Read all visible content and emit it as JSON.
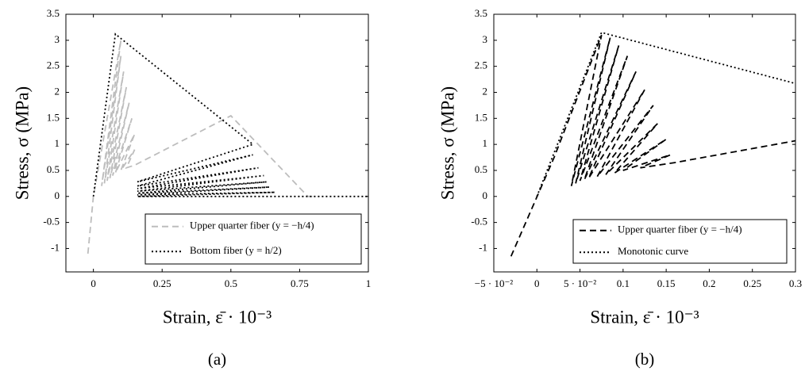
{
  "chart_data": [
    {
      "type": "line",
      "caption": "(a)",
      "x_label": "Strain, ε̄ · 10⁻³",
      "y_label": "Stress, σ (MPa)",
      "xlim": [
        -0.1,
        1
      ],
      "ylim": [
        -1.45,
        3.5
      ],
      "xticks": [
        0,
        0.25,
        0.5,
        0.75,
        1
      ],
      "yticks": [
        -1,
        -0.5,
        0,
        0.5,
        1,
        1.5,
        2,
        2.5,
        3,
        3.5
      ],
      "grid": false,
      "legend": "lower right",
      "series": [
        {
          "name": "Upper quarter fiber (y = −h/4)",
          "color": "#bdbdbd",
          "dash": "dashed",
          "x": [
            -0.02,
            0,
            0.1,
            0.03,
            0.1,
            0.04,
            0.11,
            0.05,
            0.12,
            0.06,
            0.13,
            0.07,
            0.14,
            0.08,
            0.15,
            0.1,
            0.15,
            0.12,
            0.15,
            0.5,
            0.78,
            0.8
          ],
          "values": [
            -1.1,
            0,
            3.0,
            0.2,
            2.7,
            0.25,
            2.4,
            0.3,
            2.1,
            0.35,
            1.8,
            0.4,
            1.5,
            0.45,
            1.2,
            0.5,
            0.9,
            0.55,
            0.6,
            1.55,
            0,
            0
          ]
        },
        {
          "name": "Bottom fiber (y = h/2)",
          "color": "#000000",
          "dash": "dotted",
          "x": [
            0,
            0.08,
            0.58,
            0.16,
            0.58,
            0.16,
            0.6,
            0.16,
            0.62,
            0.16,
            0.63,
            0.16,
            0.64,
            0.16,
            0.66,
            0.16,
            1.0
          ],
          "values": [
            0,
            3.12,
            1.0,
            0.28,
            0.8,
            0.2,
            0.55,
            0.15,
            0.4,
            0.1,
            0.28,
            0.06,
            0.18,
            0.03,
            0.08,
            0,
            0
          ]
        }
      ]
    },
    {
      "type": "line",
      "caption": "(b)",
      "x_label": "Strain, ε̄ · 10⁻³",
      "y_label": "Stress, σ (MPa)",
      "xlim": [
        -0.05,
        0.3
      ],
      "ylim": [
        -1.45,
        3.5
      ],
      "xticks": [
        {
          "value": -0.05,
          "label": "−5 · 10⁻²"
        },
        0,
        {
          "value": 0.05,
          "label": "5 · 10⁻²"
        },
        0.1,
        0.15,
        0.2,
        0.25,
        0.3
      ],
      "yticks": [
        -1,
        -0.5,
        0,
        0.5,
        1,
        1.5,
        2,
        2.5,
        3,
        3.5
      ],
      "grid": false,
      "legend": "lower right",
      "series": [
        {
          "name": "Upper quarter fiber (y = −h/4)",
          "color": "#000000",
          "dash": "dashed",
          "x": [
            -0.03,
            0.02,
            0.075,
            0.04,
            0.085,
            0.045,
            0.095,
            0.05,
            0.105,
            0.055,
            0.115,
            0.06,
            0.125,
            0.07,
            0.135,
            0.08,
            0.14,
            0.09,
            0.15,
            0.1,
            0.155,
            0.12,
            0.16,
            0.3
          ],
          "values": [
            -1.15,
            0.75,
            3.1,
            0.2,
            3.05,
            0.25,
            2.9,
            0.3,
            2.7,
            0.32,
            2.4,
            0.35,
            2.05,
            0.38,
            1.75,
            0.42,
            1.4,
            0.45,
            1.1,
            0.5,
            0.8,
            0.55,
            0.65,
            1.07
          ]
        },
        {
          "name": "Monotonic curve",
          "color": "#000000",
          "dash": "dotted",
          "x": [
            0,
            0.075,
            0.3
          ],
          "values": [
            0,
            3.15,
            2.17
          ]
        }
      ]
    }
  ]
}
